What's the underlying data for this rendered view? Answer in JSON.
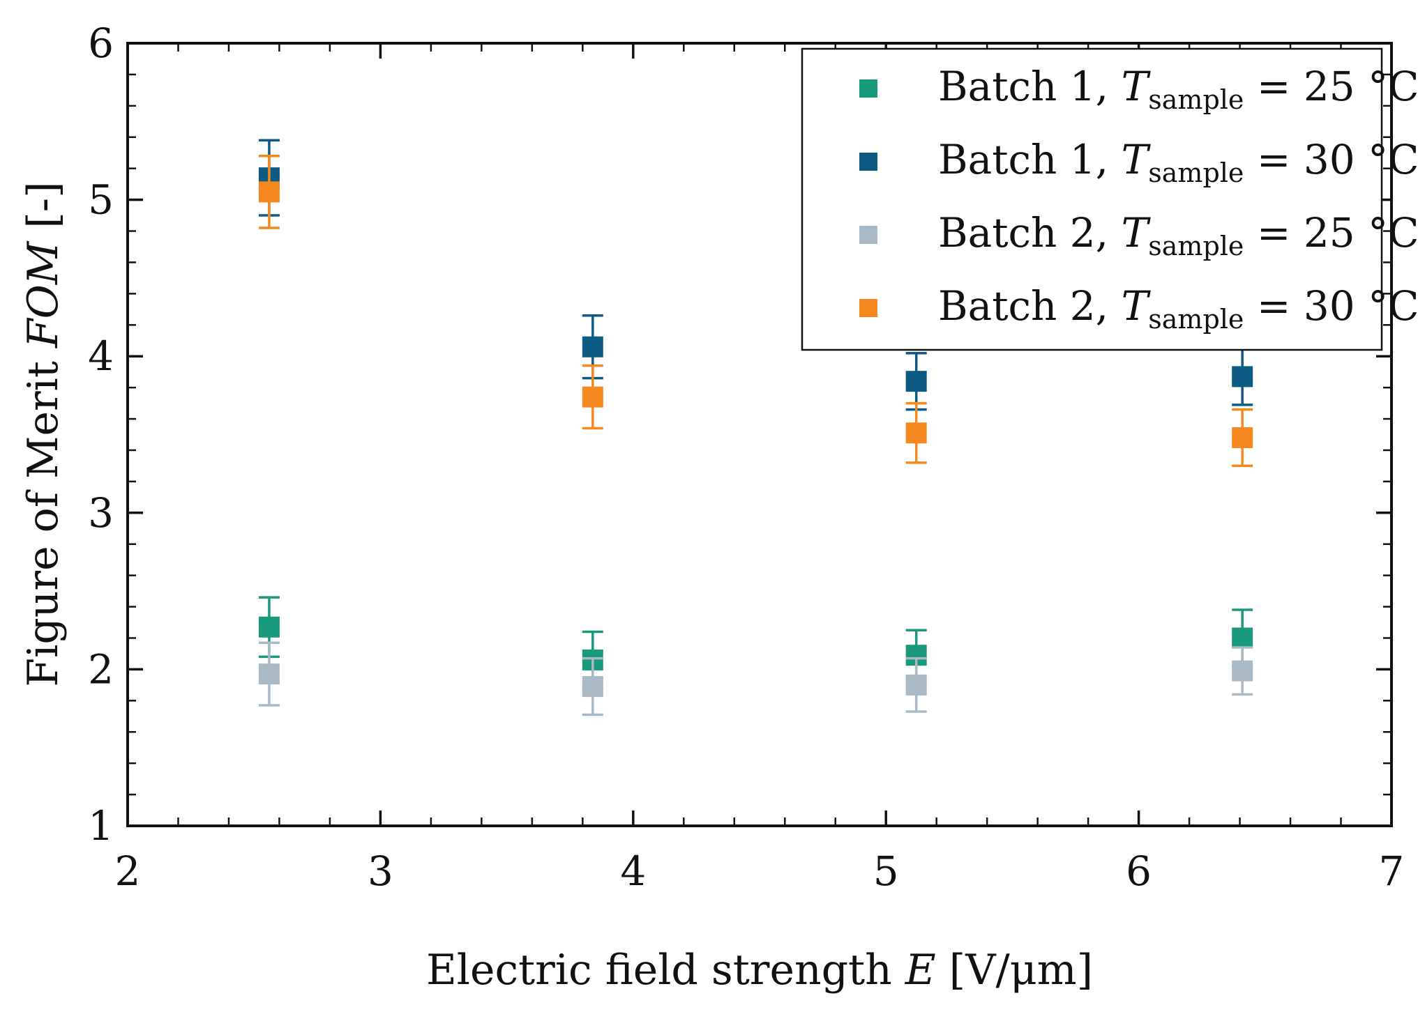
{
  "chart_data": {
    "type": "scatter",
    "xlabel": "Electric field strength",
    "xlabel_symbol": "E",
    "xlabel_unit": "[V/μm]",
    "ylabel": "Figure of Merit",
    "ylabel_symbol": "FOM",
    "ylabel_unit": "[-]",
    "xlim": [
      2,
      7
    ],
    "ylim": [
      1,
      6
    ],
    "xticks": [
      "2",
      "3",
      "4",
      "5",
      "6",
      "7"
    ],
    "yticks": [
      "1",
      "2",
      "3",
      "4",
      "5",
      "6"
    ],
    "legend_position": "top-right",
    "series": [
      {
        "name": "Batch 1, ",
        "symbol": "T",
        "subscript": "sample",
        "condition": " = 25 °C",
        "color": "#1a9a7d",
        "x": [
          2.56,
          3.84,
          5.12,
          6.41
        ],
        "y": [
          2.27,
          2.06,
          2.09,
          2.2
        ],
        "err": [
          0.19,
          0.18,
          0.16,
          0.18
        ]
      },
      {
        "name": "Batch 1, ",
        "symbol": "T",
        "subscript": "sample",
        "condition": " = 30 °C",
        "color": "#0d5a82",
        "x": [
          2.56,
          3.84,
          5.12,
          6.41
        ],
        "y": [
          5.14,
          4.06,
          3.84,
          3.87
        ],
        "err": [
          0.24,
          0.2,
          0.18,
          0.18
        ]
      },
      {
        "name": "Batch 2, ",
        "symbol": "T",
        "subscript": "sample",
        "condition": " = 25 °C",
        "color": "#a9b9c6",
        "x": [
          2.56,
          3.84,
          5.12,
          6.41
        ],
        "y": [
          1.97,
          1.89,
          1.9,
          1.99
        ],
        "err": [
          0.2,
          0.18,
          0.17,
          0.15
        ]
      },
      {
        "name": "Batch 2, ",
        "symbol": "T",
        "subscript": "sample",
        "condition": " = 30 °C",
        "color": "#f5891f",
        "x": [
          2.56,
          3.84,
          5.12,
          6.41
        ],
        "y": [
          5.05,
          3.74,
          3.51,
          3.48
        ],
        "err": [
          0.23,
          0.2,
          0.19,
          0.18
        ]
      }
    ]
  }
}
